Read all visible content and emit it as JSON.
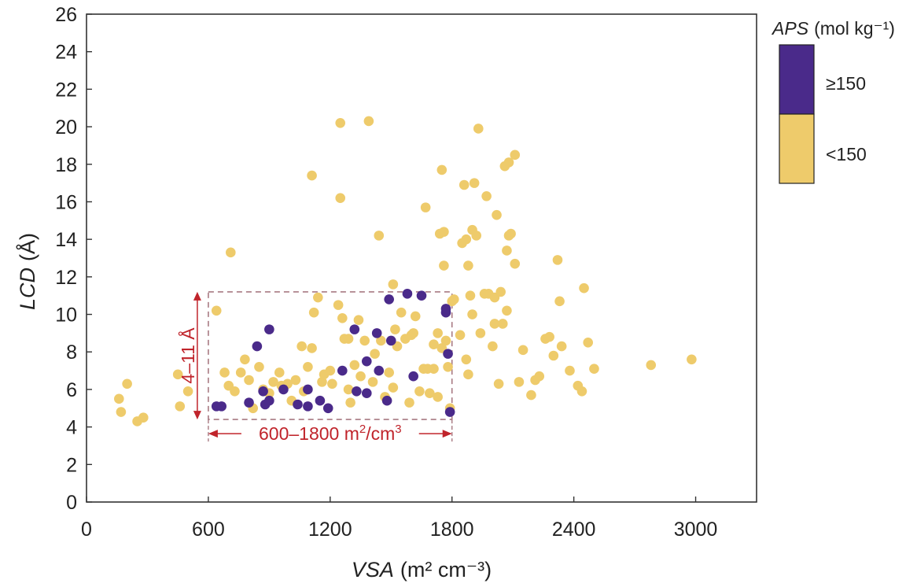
{
  "chart_data": {
    "type": "scatter",
    "xlabel_italic": "VSA",
    "xlabel_unit": "(m² cm⁻³)",
    "ylabel_italic": "LCD",
    "ylabel_unit": "(Å)",
    "xlim": [
      0,
      3300
    ],
    "ylim": [
      0,
      26
    ],
    "xticks": [
      0,
      600,
      1200,
      1800,
      2400,
      3000
    ],
    "yticks": [
      0,
      2,
      4,
      6,
      8,
      10,
      12,
      14,
      16,
      18,
      20,
      22,
      24,
      26
    ],
    "grid": false,
    "legend": {
      "title_italic": "APS",
      "title_unit": "(mol kg⁻¹)",
      "placement": "outside-right",
      "entries": [
        {
          "label": "≥150",
          "color": "#4a2a8a"
        },
        {
          "label": "<150",
          "color": "#eecb6b"
        }
      ]
    },
    "annotation_box": {
      "x": [
        600,
        1800
      ],
      "y": [
        4.4,
        11.2
      ],
      "color": "#a87a82"
    },
    "annotations": {
      "vertical": "4–11 Å",
      "horizontal_text": "600–1800 m",
      "horizontal_sup1": "2",
      "horizontal_mid": "/cm",
      "horizontal_sup2": "3",
      "color": "#c0242b"
    },
    "series": [
      {
        "name": "≥150",
        "color": "#4a2a8a",
        "points": [
          [
            640,
            5.1
          ],
          [
            665,
            5.1
          ],
          [
            800,
            5.3
          ],
          [
            840,
            8.3
          ],
          [
            870,
            5.9
          ],
          [
            880,
            5.2
          ],
          [
            900,
            5.4
          ],
          [
            900,
            9.2
          ],
          [
            970,
            6.0
          ],
          [
            1040,
            5.2
          ],
          [
            1090,
            5.1
          ],
          [
            1090,
            6.0
          ],
          [
            1150,
            5.4
          ],
          [
            1190,
            5.0
          ],
          [
            1260,
            7.0
          ],
          [
            1320,
            9.2
          ],
          [
            1330,
            5.9
          ],
          [
            1380,
            5.8
          ],
          [
            1380,
            7.5
          ],
          [
            1430,
            9.0
          ],
          [
            1440,
            7.0
          ],
          [
            1480,
            5.4
          ],
          [
            1490,
            10.8
          ],
          [
            1500,
            8.6
          ],
          [
            1580,
            11.1
          ],
          [
            1610,
            6.7
          ],
          [
            1650,
            11.0
          ],
          [
            1770,
            10.3
          ],
          [
            1770,
            10.1
          ],
          [
            1780,
            7.9
          ],
          [
            1790,
            4.8
          ]
        ]
      },
      {
        "name": "<150",
        "color": "#eecb6b",
        "points": [
          [
            160,
            5.5
          ],
          [
            170,
            4.8
          ],
          [
            200,
            6.3
          ],
          [
            250,
            4.3
          ],
          [
            280,
            4.5
          ],
          [
            450,
            6.8
          ],
          [
            460,
            5.1
          ],
          [
            500,
            5.9
          ],
          [
            640,
            10.2
          ],
          [
            680,
            6.9
          ],
          [
            700,
            6.2
          ],
          [
            710,
            13.3
          ],
          [
            730,
            5.9
          ],
          [
            760,
            6.9
          ],
          [
            780,
            7.6
          ],
          [
            800,
            6.5
          ],
          [
            820,
            5.0
          ],
          [
            850,
            7.2
          ],
          [
            870,
            6.0
          ],
          [
            900,
            5.8
          ],
          [
            920,
            6.4
          ],
          [
            950,
            6.9
          ],
          [
            960,
            6.2
          ],
          [
            990,
            6.3
          ],
          [
            1010,
            5.4
          ],
          [
            1030,
            6.5
          ],
          [
            1060,
            8.3
          ],
          [
            1070,
            5.9
          ],
          [
            1090,
            7.2
          ],
          [
            1110,
            17.4
          ],
          [
            1110,
            8.2
          ],
          [
            1120,
            10.1
          ],
          [
            1140,
            10.9
          ],
          [
            1160,
            6.4
          ],
          [
            1170,
            6.8
          ],
          [
            1200,
            7.0
          ],
          [
            1210,
            6.3
          ],
          [
            1240,
            10.5
          ],
          [
            1250,
            16.2
          ],
          [
            1250,
            20.2
          ],
          [
            1260,
            9.8
          ],
          [
            1270,
            8.7
          ],
          [
            1290,
            8.7
          ],
          [
            1290,
            6.0
          ],
          [
            1300,
            5.3
          ],
          [
            1320,
            7.3
          ],
          [
            1340,
            9.7
          ],
          [
            1350,
            6.7
          ],
          [
            1370,
            8.6
          ],
          [
            1390,
            20.3
          ],
          [
            1410,
            6.4
          ],
          [
            1420,
            7.9
          ],
          [
            1440,
            14.2
          ],
          [
            1450,
            8.6
          ],
          [
            1470,
            5.6
          ],
          [
            1490,
            6.9
          ],
          [
            1510,
            6.1
          ],
          [
            1510,
            11.6
          ],
          [
            1520,
            9.2
          ],
          [
            1530,
            8.3
          ],
          [
            1550,
            10.1
          ],
          [
            1570,
            8.7
          ],
          [
            1590,
            5.3
          ],
          [
            1600,
            8.9
          ],
          [
            1610,
            9.0
          ],
          [
            1620,
            9.9
          ],
          [
            1640,
            5.9
          ],
          [
            1660,
            7.1
          ],
          [
            1670,
            15.7
          ],
          [
            1680,
            7.1
          ],
          [
            1690,
            5.8
          ],
          [
            1710,
            7.1
          ],
          [
            1710,
            8.4
          ],
          [
            1730,
            5.6
          ],
          [
            1730,
            9.0
          ],
          [
            1740,
            14.3
          ],
          [
            1750,
            17.7
          ],
          [
            1750,
            8.2
          ],
          [
            1760,
            12.6
          ],
          [
            1760,
            14.4
          ],
          [
            1770,
            8.6
          ],
          [
            1780,
            7.2
          ],
          [
            1790,
            5.0
          ],
          [
            1800,
            10.7
          ],
          [
            1810,
            10.8
          ],
          [
            1840,
            8.9
          ],
          [
            1850,
            13.8
          ],
          [
            1860,
            16.9
          ],
          [
            1870,
            14.0
          ],
          [
            1870,
            7.6
          ],
          [
            1880,
            12.6
          ],
          [
            1880,
            6.8
          ],
          [
            1890,
            11.0
          ],
          [
            1900,
            14.5
          ],
          [
            1900,
            10.0
          ],
          [
            1910,
            17.0
          ],
          [
            1920,
            14.2
          ],
          [
            1930,
            19.9
          ],
          [
            1940,
            9.0
          ],
          [
            1960,
            11.1
          ],
          [
            1970,
            16.3
          ],
          [
            1980,
            11.1
          ],
          [
            2000,
            8.3
          ],
          [
            2010,
            9.5
          ],
          [
            2010,
            10.9
          ],
          [
            2020,
            15.3
          ],
          [
            2030,
            6.3
          ],
          [
            2040,
            11.2
          ],
          [
            2050,
            9.5
          ],
          [
            2060,
            17.9
          ],
          [
            2070,
            13.4
          ],
          [
            2070,
            10.2
          ],
          [
            2080,
            18.1
          ],
          [
            2080,
            14.2
          ],
          [
            2090,
            14.3
          ],
          [
            2110,
            18.5
          ],
          [
            2110,
            12.7
          ],
          [
            2130,
            6.4
          ],
          [
            2150,
            8.1
          ],
          [
            2190,
            5.7
          ],
          [
            2210,
            6.5
          ],
          [
            2230,
            6.7
          ],
          [
            2260,
            8.7
          ],
          [
            2280,
            8.8
          ],
          [
            2300,
            7.8
          ],
          [
            2320,
            12.9
          ],
          [
            2330,
            10.7
          ],
          [
            2340,
            8.3
          ],
          [
            2380,
            7.0
          ],
          [
            2420,
            6.2
          ],
          [
            2440,
            5.9
          ],
          [
            2450,
            11.4
          ],
          [
            2470,
            8.5
          ],
          [
            2500,
            7.1
          ],
          [
            2780,
            7.3
          ],
          [
            2980,
            7.6
          ]
        ]
      }
    ]
  }
}
